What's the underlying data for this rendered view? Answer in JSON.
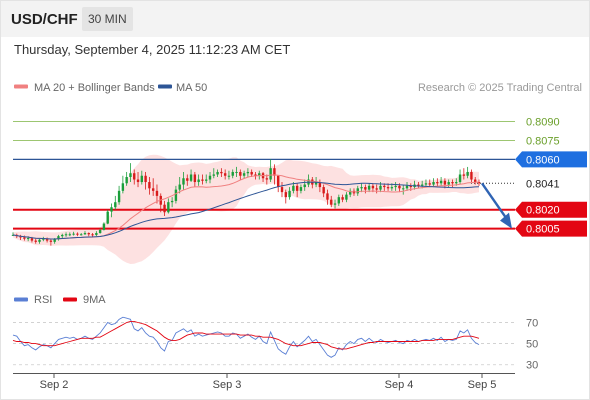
{
  "header": {
    "symbol": "USD/CHF",
    "timeframe": "30 MIN"
  },
  "timestamp": "Thursday, September 4, 2025 11:12:23 AM CET",
  "legend": {
    "items": [
      {
        "label": "MA 20 + Bollinger Bands",
        "color": "#f08080"
      },
      {
        "label": "MA 50",
        "color": "#2d5596"
      }
    ],
    "credit": "Research © 2025 Trading Central"
  },
  "colors": {
    "bull": "#1a9e3a",
    "bear": "#d81b1b",
    "bollinger_fill": "#fddada",
    "ma20": "#f08080",
    "ma50": "#2d5596",
    "support": "#e30613",
    "resistance_green": "#7cb342",
    "pivot": "#2d5596",
    "rsi": "#5a7fd4",
    "rsi_ma": "#e30613"
  },
  "chart_data": [
    {
      "type": "candlestick",
      "ylim": [
        0.7965,
        0.81
      ],
      "x_ticks": [
        "Sep 2",
        "Sep 3",
        "Sep 4",
        "Sep 5"
      ],
      "levels": [
        {
          "label": "0.8090",
          "value": 0.809,
          "kind": "resistance"
        },
        {
          "label": "0.8075",
          "value": 0.8075,
          "kind": "resistance"
        },
        {
          "label": "0.8060",
          "value": 0.806,
          "kind": "pivot"
        },
        {
          "label": "0.8041",
          "value": 0.8041,
          "kind": "current"
        },
        {
          "label": "0.8020",
          "value": 0.802,
          "kind": "support"
        },
        {
          "label": "0.8005",
          "value": 0.8005,
          "kind": "support"
        }
      ],
      "current_price": "0.8041",
      "projection": {
        "from": 0.8041,
        "to": 0.8005
      },
      "ohlc": [
        [
          0.8,
          0.8,
          0.79995,
          0.8002
        ],
        [
          0.8,
          0.7999,
          0.79975,
          0.8001
        ],
        [
          0.7999,
          0.7998,
          0.7996,
          0.8
        ],
        [
          0.7998,
          0.7997,
          0.79955,
          0.79995
        ],
        [
          0.7997,
          0.79975,
          0.7995,
          0.7999
        ],
        [
          0.79975,
          0.79955,
          0.7994,
          0.79985
        ],
        [
          0.79955,
          0.79945,
          0.7993,
          0.7997
        ],
        [
          0.79945,
          0.79962,
          0.7993,
          0.79975
        ],
        [
          0.79962,
          0.7997,
          0.7995,
          0.79985
        ],
        [
          0.7997,
          0.79955,
          0.7994,
          0.7998
        ],
        [
          0.79955,
          0.79945,
          0.79915,
          0.7997
        ],
        [
          0.79945,
          0.79965,
          0.7993,
          0.79975
        ],
        [
          0.79965,
          0.7999,
          0.79955,
          0.8
        ],
        [
          0.7999,
          0.8,
          0.79975,
          0.8001
        ],
        [
          0.8,
          0.80005,
          0.79985,
          0.8002
        ],
        [
          0.80005,
          0.80005,
          0.7999,
          0.8002
        ],
        [
          0.80005,
          0.8001,
          0.79995,
          0.80025
        ],
        [
          0.8001,
          0.80005,
          0.7999,
          0.8002
        ],
        [
          0.80005,
          0.80005,
          0.79995,
          0.80015
        ],
        [
          0.80005,
          0.80015,
          0.8,
          0.8003
        ],
        [
          0.80015,
          0.80005,
          0.7999,
          0.8002
        ],
        [
          0.80005,
          0.8,
          0.79985,
          0.80015
        ],
        [
          0.8,
          0.80015,
          0.7999,
          0.8003
        ],
        [
          0.80015,
          0.8004,
          0.8001,
          0.8005
        ],
        [
          0.8004,
          0.8009,
          0.80035,
          0.801
        ],
        [
          0.8009,
          0.80185,
          0.80085,
          0.802
        ],
        [
          0.80185,
          0.8022,
          0.8014,
          0.8025
        ],
        [
          0.8022,
          0.8026,
          0.802,
          0.8031
        ],
        [
          0.8026,
          0.8035,
          0.8024,
          0.8039
        ],
        [
          0.8035,
          0.8041,
          0.8033,
          0.8047
        ],
        [
          0.8041,
          0.8046,
          0.8039,
          0.805
        ],
        [
          0.8046,
          0.8049,
          0.8042,
          0.8057
        ],
        [
          0.8049,
          0.8044,
          0.804,
          0.8052
        ],
        [
          0.8044,
          0.8042,
          0.8038,
          0.805
        ],
        [
          0.8042,
          0.8047,
          0.804,
          0.8051
        ],
        [
          0.8047,
          0.8042,
          0.8036,
          0.805
        ],
        [
          0.8042,
          0.8037,
          0.8032,
          0.8046
        ],
        [
          0.8037,
          0.8035,
          0.8031,
          0.8045
        ],
        [
          0.8035,
          0.8031,
          0.8025,
          0.804
        ],
        [
          0.8031,
          0.8024,
          0.8018,
          0.8033
        ],
        [
          0.8024,
          0.8018,
          0.8015,
          0.8027
        ],
        [
          0.8018,
          0.8026,
          0.8017,
          0.8029
        ],
        [
          0.8026,
          0.8027,
          0.8022,
          0.803
        ],
        [
          0.8027,
          0.8036,
          0.8025,
          0.8039
        ],
        [
          0.8036,
          0.804,
          0.8033,
          0.8046
        ],
        [
          0.804,
          0.8045,
          0.8036,
          0.805
        ],
        [
          0.8045,
          0.8043,
          0.8039,
          0.8048
        ],
        [
          0.8043,
          0.8048,
          0.8042,
          0.8052
        ],
        [
          0.8048,
          0.8042,
          0.8038,
          0.805
        ],
        [
          0.8042,
          0.8044,
          0.8039,
          0.8048
        ],
        [
          0.8044,
          0.8043,
          0.804,
          0.8048
        ],
        [
          0.8043,
          0.8044,
          0.8041,
          0.8048
        ],
        [
          0.8044,
          0.8047,
          0.8041,
          0.805
        ],
        [
          0.8047,
          0.8048,
          0.8045,
          0.8053
        ],
        [
          0.8048,
          0.805,
          0.8046,
          0.8052
        ],
        [
          0.805,
          0.8049,
          0.8046,
          0.8053
        ],
        [
          0.8049,
          0.8047,
          0.8044,
          0.8052
        ],
        [
          0.8047,
          0.8047,
          0.8044,
          0.8051
        ],
        [
          0.8047,
          0.805,
          0.8045,
          0.8052
        ],
        [
          0.805,
          0.805,
          0.8046,
          0.8054
        ],
        [
          0.805,
          0.8047,
          0.8044,
          0.8052
        ],
        [
          0.8047,
          0.8049,
          0.8045,
          0.8051
        ],
        [
          0.8049,
          0.805,
          0.8046,
          0.8053
        ],
        [
          0.805,
          0.8048,
          0.8046,
          0.8052
        ],
        [
          0.8048,
          0.8047,
          0.8044,
          0.805
        ],
        [
          0.8047,
          0.8049,
          0.8044,
          0.8051
        ],
        [
          0.8049,
          0.8045,
          0.8042,
          0.805
        ],
        [
          0.8045,
          0.8044,
          0.804,
          0.8048
        ],
        [
          0.8044,
          0.8053,
          0.8042,
          0.806
        ],
        [
          0.8053,
          0.8047,
          0.804,
          0.8056
        ],
        [
          0.8047,
          0.8038,
          0.8034,
          0.8047
        ],
        [
          0.8038,
          0.8034,
          0.803,
          0.8042
        ],
        [
          0.8034,
          0.803,
          0.8025,
          0.8036
        ],
        [
          0.803,
          0.8035,
          0.8028,
          0.8038
        ],
        [
          0.8035,
          0.8039,
          0.8033,
          0.8042
        ],
        [
          0.8039,
          0.8035,
          0.803,
          0.8041
        ],
        [
          0.8035,
          0.8038,
          0.8033,
          0.804
        ],
        [
          0.8038,
          0.804,
          0.8035,
          0.8044
        ],
        [
          0.804,
          0.8044,
          0.8038,
          0.8048
        ],
        [
          0.8044,
          0.804,
          0.8037,
          0.8046
        ],
        [
          0.804,
          0.8042,
          0.8038,
          0.8046
        ],
        [
          0.8042,
          0.8038,
          0.8034,
          0.8044
        ],
        [
          0.8038,
          0.8033,
          0.803,
          0.804
        ],
        [
          0.8033,
          0.8028,
          0.8024,
          0.8036
        ],
        [
          0.8028,
          0.8024,
          0.8022,
          0.8031
        ],
        [
          0.8024,
          0.8025,
          0.8021,
          0.8028
        ],
        [
          0.8025,
          0.803,
          0.8023,
          0.8032
        ],
        [
          0.803,
          0.8028,
          0.8026,
          0.8032
        ],
        [
          0.8028,
          0.8032,
          0.8026,
          0.8034
        ],
        [
          0.8032,
          0.8035,
          0.803,
          0.8037
        ],
        [
          0.8035,
          0.8033,
          0.8031,
          0.8037
        ],
        [
          0.8033,
          0.8037,
          0.8031,
          0.8039
        ],
        [
          0.8037,
          0.8038,
          0.8034,
          0.8041
        ],
        [
          0.8038,
          0.8036,
          0.8033,
          0.804
        ],
        [
          0.8036,
          0.8039,
          0.8034,
          0.8041
        ],
        [
          0.8039,
          0.8037,
          0.8034,
          0.8041
        ],
        [
          0.8037,
          0.8036,
          0.8033,
          0.804
        ],
        [
          0.8036,
          0.8039,
          0.8034,
          0.8042
        ],
        [
          0.8039,
          0.8038,
          0.8035,
          0.8041
        ],
        [
          0.8038,
          0.8037,
          0.8035,
          0.8041
        ],
        [
          0.8037,
          0.8038,
          0.8035,
          0.8041
        ],
        [
          0.8038,
          0.8039,
          0.8035,
          0.8042
        ],
        [
          0.8039,
          0.8037,
          0.8034,
          0.8041
        ],
        [
          0.8037,
          0.8037,
          0.8032,
          0.804
        ],
        [
          0.8037,
          0.8039,
          0.8035,
          0.8042
        ],
        [
          0.8039,
          0.8038,
          0.8035,
          0.8041
        ],
        [
          0.8038,
          0.804,
          0.8036,
          0.8043
        ],
        [
          0.804,
          0.8039,
          0.8037,
          0.8042
        ],
        [
          0.8039,
          0.804,
          0.8037,
          0.8043
        ],
        [
          0.804,
          0.8041,
          0.8038,
          0.8044
        ],
        [
          0.8041,
          0.804,
          0.8038,
          0.8044
        ],
        [
          0.804,
          0.8042,
          0.8038,
          0.8045
        ],
        [
          0.8042,
          0.8041,
          0.8038,
          0.8045
        ],
        [
          0.8041,
          0.8043,
          0.8039,
          0.8046
        ],
        [
          0.8043,
          0.804,
          0.8037,
          0.8045
        ],
        [
          0.804,
          0.8042,
          0.8038,
          0.8044
        ],
        [
          0.8042,
          0.8041,
          0.8038,
          0.8044
        ],
        [
          0.8041,
          0.8042,
          0.8039,
          0.8045
        ],
        [
          0.8042,
          0.8048,
          0.804,
          0.8052
        ],
        [
          0.8048,
          0.8047,
          0.8044,
          0.8053
        ],
        [
          0.8047,
          0.805,
          0.8045,
          0.8054
        ],
        [
          0.805,
          0.8044,
          0.8042,
          0.8052
        ],
        [
          0.8044,
          0.8042,
          0.804,
          0.8046
        ],
        [
          0.8042,
          0.8041,
          0.8039,
          0.8044
        ]
      ]
    },
    {
      "type": "line",
      "series": [
        {
          "name": "RSI",
          "values": [
            58,
            57,
            52,
            48,
            49,
            46,
            44,
            47,
            49,
            48,
            46,
            50,
            54,
            55,
            56,
            55,
            56,
            54,
            55,
            57,
            55,
            54,
            57,
            60,
            65,
            70,
            68,
            69,
            73,
            75,
            74,
            73,
            64,
            62,
            65,
            60,
            57,
            56,
            52,
            46,
            43,
            52,
            53,
            60,
            62,
            64,
            61,
            63,
            57,
            59,
            57,
            58,
            59,
            60,
            61,
            60,
            57,
            57,
            60,
            59,
            55,
            57,
            59,
            56,
            54,
            57,
            52,
            50,
            61,
            53,
            45,
            42,
            40,
            47,
            52,
            47,
            50,
            53,
            57,
            52,
            54,
            49,
            44,
            39,
            37,
            39,
            46,
            44,
            49,
            52,
            50,
            54,
            55,
            52,
            55,
            52,
            51,
            54,
            52,
            51,
            52,
            53,
            51,
            50,
            53,
            52,
            54,
            52,
            53,
            54,
            53,
            55,
            53,
            56,
            52,
            54,
            53,
            54,
            62,
            60,
            63,
            55,
            51,
            49
          ]
        },
        {
          "name": "9MA",
          "values": [
            53,
            52,
            52,
            51,
            51,
            50,
            50,
            49,
            48,
            48,
            48,
            48,
            49,
            50,
            51,
            52,
            53,
            54,
            55,
            55,
            55,
            55,
            56,
            56,
            58,
            60,
            62,
            64,
            66,
            68,
            70,
            71,
            71,
            70,
            69,
            68,
            66,
            64,
            62,
            59,
            56,
            54,
            53,
            53,
            54,
            56,
            58,
            59,
            60,
            60,
            60,
            59,
            59,
            59,
            59,
            59,
            59,
            59,
            59,
            59,
            58,
            58,
            58,
            58,
            57,
            57,
            56,
            56,
            56,
            55,
            54,
            52,
            50,
            49,
            48,
            48,
            48,
            49,
            50,
            51,
            51,
            51,
            50,
            49,
            47,
            46,
            45,
            45,
            45,
            46,
            47,
            48,
            49,
            50,
            51,
            51,
            52,
            52,
            52,
            52,
            52,
            52,
            52,
            52,
            52,
            52,
            52,
            52,
            53,
            53,
            53,
            53,
            54,
            54,
            54,
            54,
            54,
            55,
            56,
            57,
            57,
            57,
            56,
            55
          ]
        }
      ],
      "ylim": [
        25,
        78
      ],
      "y_ticks": [
        "70",
        "50",
        "30"
      ],
      "x_ticks": [
        "Sep 2",
        "Sep 3",
        "Sep 4",
        "Sep 5"
      ]
    }
  ]
}
